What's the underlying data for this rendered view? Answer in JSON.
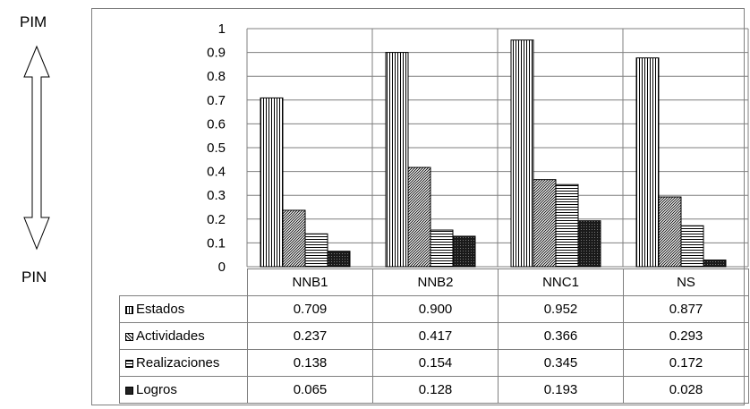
{
  "left_axis": {
    "top_label": "PIM",
    "bottom_label": "PIN"
  },
  "chart_data": {
    "type": "bar",
    "categories": [
      "NNB1",
      "NNB2",
      "NNC1",
      "NS"
    ],
    "ylim": [
      0,
      1
    ],
    "yticks": [
      "0",
      "0.1",
      "0.2",
      "0.3",
      "0.4",
      "0.5",
      "0.6",
      "0.7",
      "0.8",
      "0.9",
      "1"
    ],
    "ytick_values": [
      0,
      0.1,
      0.2,
      0.3,
      0.4,
      0.5,
      0.6,
      0.7,
      0.8,
      0.9,
      1
    ],
    "grid": true,
    "legend": "data-table",
    "series": [
      {
        "name": "Estados",
        "pattern": "vertical-lines",
        "values": [
          0.709,
          0.9,
          0.952,
          0.877
        ],
        "labels": [
          "0.709",
          "0.900",
          "0.952",
          "0.877"
        ]
      },
      {
        "name": "Actividades",
        "pattern": "diagonal-lines",
        "values": [
          0.237,
          0.417,
          0.366,
          0.293
        ],
        "labels": [
          "0.237",
          "0.417",
          "0.366",
          "0.293"
        ]
      },
      {
        "name": "Realizaciones",
        "pattern": "horizontal-lines",
        "values": [
          0.138,
          0.154,
          0.345,
          0.172
        ],
        "labels": [
          "0.138",
          "0.154",
          "0.345",
          "0.172"
        ]
      },
      {
        "name": "Logros",
        "pattern": "dark-dots",
        "values": [
          0.065,
          0.128,
          0.193,
          0.028
        ],
        "labels": [
          "0.065",
          "0.128",
          "0.193",
          "0.028"
        ]
      }
    ]
  },
  "colors": {
    "frame": "#7f7f7f",
    "grid": "#7f7f7f",
    "bar_outline": "#000000",
    "logros_fill": "#222222"
  }
}
